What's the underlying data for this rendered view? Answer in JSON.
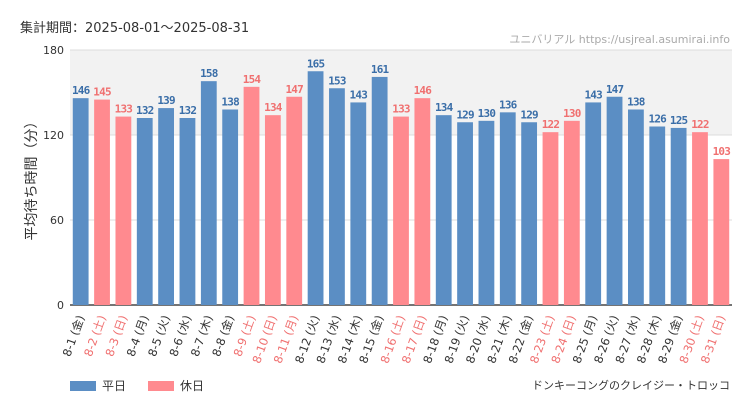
{
  "header": {
    "period_label": "集計期間：2025-08-01～2025-08-31",
    "credit": "ユニバリアル  https://usjreal.asumirai.info"
  },
  "footer": {
    "attraction_name": "ドンキーコングのクレイジー・トロッコ"
  },
  "colors": {
    "weekday": "#5b8ec4",
    "holiday": "#ff8a8f",
    "weekday_label": "#3a6ea8",
    "holiday_label": "#f07070",
    "holiday_band": "#f2f2f2"
  },
  "chart_data": {
    "type": "bar",
    "ylabel": "平均待ち時間（分）",
    "ylim": [
      0,
      180
    ],
    "yticks": [
      0,
      60,
      120,
      180
    ],
    "grid": true,
    "legend_placement": "bottom-left",
    "legend": [
      {
        "key": "weekday",
        "label": "平日"
      },
      {
        "key": "holiday",
        "label": "休日"
      }
    ],
    "categories": [
      "8-1 (金)",
      "8-2 (土)",
      "8-3 (日)",
      "8-4 (月)",
      "8-5 (火)",
      "8-6 (水)",
      "8-7 (木)",
      "8-8 (金)",
      "8-9 (土)",
      "8-10 (日)",
      "8-11 (月)",
      "8-12 (火)",
      "8-13 (水)",
      "8-14 (木)",
      "8-15 (金)",
      "8-16 (土)",
      "8-17 (日)",
      "8-18 (月)",
      "8-19 (火)",
      "8-20 (水)",
      "8-21 (木)",
      "8-22 (金)",
      "8-23 (土)",
      "8-24 (日)",
      "8-25 (月)",
      "8-26 (火)",
      "8-27 (水)",
      "8-28 (木)",
      "8-29 (金)",
      "8-30 (土)",
      "8-31 (日)"
    ],
    "values": [
      146,
      145,
      133,
      132,
      139,
      132,
      158,
      138,
      154,
      134,
      147,
      165,
      153,
      143,
      161,
      133,
      146,
      134,
      129,
      130,
      136,
      129,
      122,
      130,
      143,
      147,
      138,
      126,
      125,
      122,
      103
    ],
    "day_type": [
      "weekday",
      "holiday",
      "holiday",
      "weekday",
      "weekday",
      "weekday",
      "weekday",
      "weekday",
      "holiday",
      "holiday",
      "holiday",
      "weekday",
      "weekday",
      "weekday",
      "weekday",
      "holiday",
      "holiday",
      "weekday",
      "weekday",
      "weekday",
      "weekday",
      "weekday",
      "holiday",
      "holiday",
      "weekday",
      "weekday",
      "weekday",
      "weekday",
      "weekday",
      "holiday",
      "holiday"
    ]
  }
}
